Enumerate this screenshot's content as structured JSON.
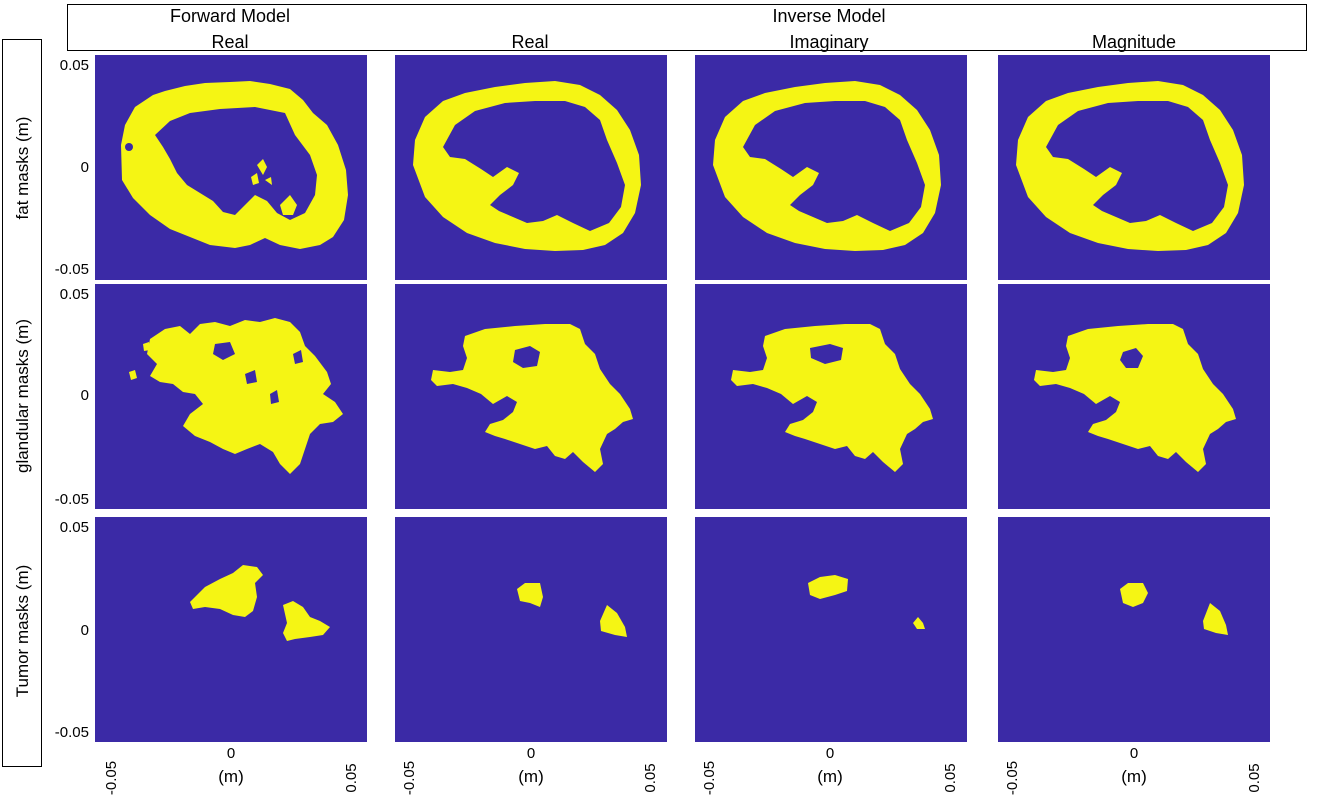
{
  "header": {
    "forward_title": "Forward Model",
    "inverse_title": "Inverse Model",
    "columns": [
      "Real",
      "Real",
      "Imaginary",
      "Magnitude"
    ]
  },
  "rows": [
    "fat masks (m)",
    "glandular masks (m)",
    "Tumor masks (m)"
  ],
  "y_ticks": [
    "0.05",
    "0",
    "-0.05"
  ],
  "x_ticks": [
    "-0.05",
    "0",
    "0.05"
  ],
  "x_unit": "(m)",
  "colors": {
    "background": "#3B2AA6",
    "mask": "#F5F514"
  }
}
